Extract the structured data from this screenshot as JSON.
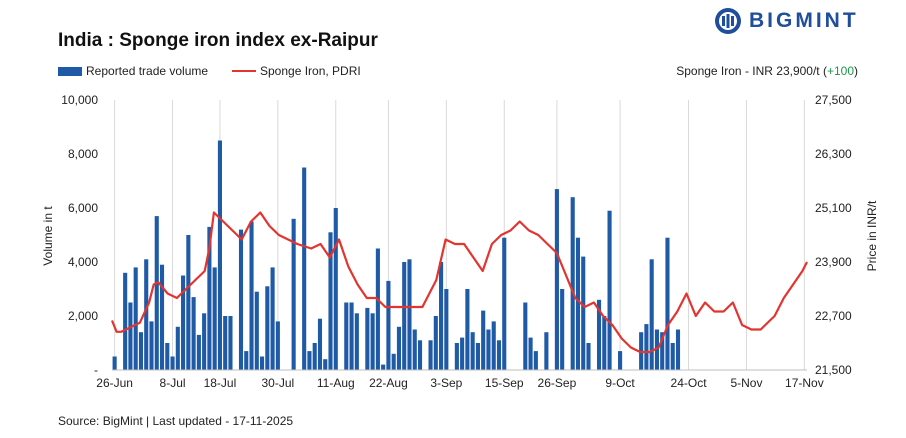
{
  "header": {
    "title": "India : Sponge iron index ex-Raipur",
    "logo_text": "BIGMINT",
    "price_note_prefix": "Sponge Iron - INR 23,900/t (",
    "price_note_change": "+100",
    "price_note_suffix": ")"
  },
  "legend": {
    "bar_label": "Reported trade volume",
    "line_label": "Sponge Iron, PDRI"
  },
  "footer": {
    "source": "Source: BigMint | Last updated - 17-11-2025"
  },
  "colors": {
    "bar": "#1f5aa6",
    "line": "#e3342f",
    "logo": "#1f4e9a",
    "positive_change": "#1a9a4a"
  },
  "chart_data": {
    "type": "bar+line",
    "x_tick_labels": [
      "26-Jun",
      "8-Jul",
      "18-Jul",
      "30-Jul",
      "11-Aug",
      "22-Aug",
      "3-Sep",
      "15-Sep",
      "26-Sep",
      "9-Oct",
      "24-Oct",
      "5-Nov",
      "17-Nov"
    ],
    "x_tick_positions": [
      0,
      11,
      20,
      31,
      42,
      52,
      63,
      74,
      84,
      96,
      109,
      120,
      131
    ],
    "n_slots": 132,
    "y_left_label": "Volume in t",
    "y_left_range": [
      0,
      10000
    ],
    "y_left_ticks": [
      "-",
      "2,000",
      "4,000",
      "6,000",
      "8,000",
      "10,000"
    ],
    "y_right_label": "Price in INR/t",
    "y_right_range": [
      21500,
      27500
    ],
    "y_right_ticks": [
      "21,500",
      "22,700",
      "23,900",
      "25,100",
      "26,300",
      "27,500"
    ],
    "series": [
      {
        "name": "Reported trade volume",
        "kind": "bar",
        "values": [
          500,
          0,
          3600,
          2500,
          3800,
          1400,
          4100,
          1800,
          5700,
          3900,
          1000,
          500,
          1600,
          3500,
          5000,
          2700,
          1300,
          2100,
          5300,
          3800,
          8500,
          2000,
          2000,
          0,
          5200,
          700,
          5500,
          2900,
          500,
          3100,
          3800,
          1800,
          0,
          0,
          5600,
          0,
          7500,
          700,
          1000,
          1900,
          400,
          5100,
          6000,
          0,
          2500,
          2500,
          2100,
          0,
          2300,
          2100,
          4500,
          200,
          3300,
          600,
          1600,
          4000,
          4100,
          1500,
          1100,
          0,
          1100,
          2000,
          4000,
          3000,
          0,
          1000,
          1200,
          3000,
          1400,
          1000,
          2200,
          1500,
          1800,
          1100,
          4900,
          0,
          0,
          0,
          2500,
          1200,
          700,
          0,
          1400,
          0,
          6700,
          3000,
          0,
          6400,
          4900,
          4200,
          1000,
          0,
          2600,
          2000,
          5900,
          0,
          700,
          0,
          0,
          0,
          1400,
          1700,
          4100,
          1500,
          1400,
          4900,
          1000,
          1500
        ]
      },
      {
        "name": "Sponge Iron, PDRI",
        "kind": "line",
        "points": [
          [
            0,
            22600
          ],
          [
            1,
            22350
          ],
          [
            2,
            22350
          ],
          [
            4,
            22450
          ],
          [
            6,
            22550
          ],
          [
            8,
            23000
          ],
          [
            9,
            23400
          ],
          [
            10,
            23450
          ],
          [
            12,
            23200
          ],
          [
            14,
            23100
          ],
          [
            16,
            23300
          ],
          [
            18,
            23500
          ],
          [
            20,
            23700
          ],
          [
            21,
            24200
          ],
          [
            22,
            25000
          ],
          [
            24,
            24800
          ],
          [
            26,
            24600
          ],
          [
            28,
            24400
          ],
          [
            30,
            24800
          ],
          [
            32,
            25000
          ],
          [
            34,
            24700
          ],
          [
            36,
            24500
          ],
          [
            38,
            24400
          ],
          [
            40,
            24300
          ],
          [
            43,
            24200
          ],
          [
            45,
            24300
          ],
          [
            47,
            24000
          ],
          [
            49,
            24400
          ],
          [
            51,
            23800
          ],
          [
            53,
            23400
          ],
          [
            55,
            23100
          ],
          [
            57,
            23100
          ],
          [
            59,
            22900
          ],
          [
            61,
            22900
          ],
          [
            63,
            22900
          ],
          [
            65,
            22900
          ],
          [
            67,
            22900
          ],
          [
            70,
            23500
          ],
          [
            72,
            24400
          ],
          [
            74,
            24300
          ],
          [
            76,
            24300
          ],
          [
            78,
            24000
          ],
          [
            80,
            23700
          ],
          [
            82,
            24300
          ],
          [
            84,
            24500
          ],
          [
            86,
            24600
          ],
          [
            88,
            24800
          ],
          [
            90,
            24600
          ],
          [
            92,
            24500
          ],
          [
            94,
            24300
          ],
          [
            96,
            24100
          ],
          [
            98,
            23600
          ],
          [
            100,
            23100
          ],
          [
            102,
            22900
          ],
          [
            104,
            23000
          ],
          [
            106,
            22700
          ],
          [
            108,
            22500
          ],
          [
            110,
            22200
          ],
          [
            112,
            22000
          ],
          [
            114,
            21900
          ],
          [
            116,
            21900
          ],
          [
            118,
            22000
          ],
          [
            120,
            22500
          ],
          [
            122,
            22800
          ],
          [
            124,
            23200
          ],
          [
            126,
            22700
          ],
          [
            128,
            23000
          ],
          [
            130,
            22800
          ],
          [
            132,
            22800
          ],
          [
            134,
            23000
          ],
          [
            136,
            22500
          ],
          [
            138,
            22400
          ],
          [
            140,
            22400
          ],
          [
            142,
            22600
          ],
          [
            143,
            22700
          ],
          [
            145,
            23100
          ],
          [
            147,
            23400
          ],
          [
            149,
            23700
          ],
          [
            150,
            23900
          ]
        ]
      }
    ],
    "grid": "vertical",
    "legend_position": "top-left"
  }
}
